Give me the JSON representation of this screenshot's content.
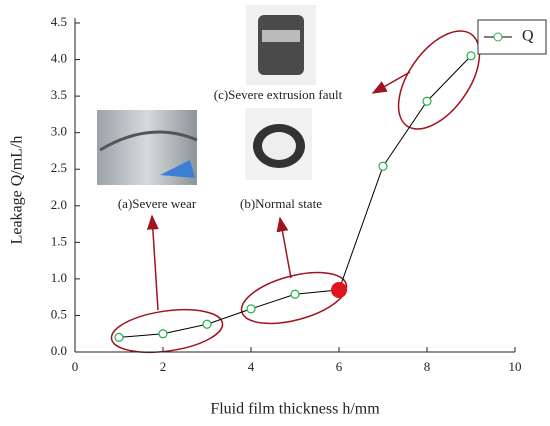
{
  "chart_data": {
    "type": "line",
    "x_label": "Fluid film thickness  h/mm",
    "y_label": "Leakage Q/mL/h",
    "annotations": [
      "(a)Severe wear",
      "(b)Normal state",
      "(c)Severe extrusion fault"
    ],
    "x": [
      1,
      2,
      3,
      4,
      5,
      6,
      7,
      8,
      9
    ],
    "series": [
      {
        "name": "Q",
        "color": "#22b14c",
        "values": [
          0.2,
          0.25,
          0.38,
          0.59,
          0.79,
          0.85,
          2.54,
          3.43,
          4.05
        ]
      }
    ],
    "xlim": [
      0,
      10
    ],
    "xticks": [
      0,
      2,
      4,
      6,
      8,
      10
    ],
    "ylim": [
      0,
      4.5
    ],
    "yticks": [
      {
        "value": 0,
        "label": "0.0"
      },
      0.5,
      {
        "value": 1,
        "label": "1.0"
      },
      1.5,
      {
        "value": 2,
        "label": "2.0"
      },
      2.5,
      {
        "value": 3,
        "label": "3.0"
      },
      3.5,
      {
        "value": 4,
        "label": "4.0"
      },
      4.5
    ],
    "legend": "upper right"
  }
}
